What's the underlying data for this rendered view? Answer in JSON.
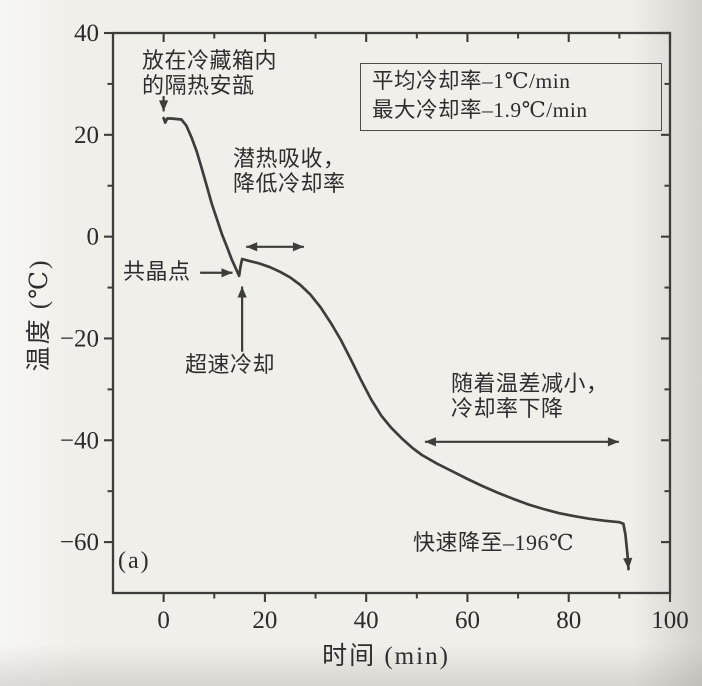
{
  "figure": {
    "panel_label": "(a)",
    "line_color": "#3d3d3c",
    "text_color": "#2e2e2e"
  },
  "axes": {
    "x_label": "时间 (min)",
    "y_label": "温度 (℃)"
  },
  "annotations": {
    "ampoule": {
      "line1": "放在冷藏箱内",
      "line2": "的隔热安瓿"
    },
    "rate_box": {
      "line1": "平均冷却率–1℃/min",
      "line2": "最大冷却率–1.9℃/min"
    },
    "latent_heat": {
      "line1": "潜热吸收，",
      "line2": "降低冷却率"
    },
    "eutectic_point": {
      "text": "共晶点"
    },
    "supercooling": {
      "text": "超速冷却"
    },
    "temp_difference": {
      "line1": "随着温差减小，",
      "line2": "冷却率下降"
    },
    "rapid_drop": {
      "text": "快速降至–196℃"
    }
  },
  "chart_data": {
    "type": "line",
    "title": "",
    "xlabel": "时间 (min)",
    "ylabel": "温度 (℃)",
    "xlim": [
      -10,
      100
    ],
    "ylim": [
      -70,
      40
    ],
    "grid": false,
    "frame": true,
    "x_ticks": {
      "major": [
        0,
        20,
        40,
        60,
        80,
        100
      ],
      "labels": [
        "0",
        "20",
        "40",
        "60",
        "80",
        "100"
      ],
      "minor": [
        10,
        30,
        50,
        70,
        90
      ]
    },
    "y_ticks": {
      "major": [
        40,
        20,
        0,
        -20,
        -40,
        -60
      ],
      "labels": [
        "40",
        "20",
        "0",
        "−20",
        "−40",
        "−60"
      ],
      "minor": [
        30,
        10,
        -10,
        -30,
        -50
      ]
    },
    "series": [
      {
        "name": "cooling-curve",
        "end_arrow": true,
        "points": [
          [
            0,
            23.3
          ],
          [
            0.3,
            22.4
          ],
          [
            0.7,
            23.2
          ],
          [
            1.5,
            23.2
          ],
          [
            3.5,
            23.0
          ],
          [
            4.5,
            21.8
          ],
          [
            5.5,
            19.5
          ],
          [
            6.5,
            16.8
          ],
          [
            7.5,
            13.5
          ],
          [
            8.5,
            10.0
          ],
          [
            9.5,
            6.5
          ],
          [
            10.5,
            3.5
          ],
          [
            11.5,
            0.5
          ],
          [
            12.5,
            -2.0
          ],
          [
            13.5,
            -4.6
          ],
          [
            14.4,
            -6.6
          ],
          [
            14.9,
            -7.7
          ],
          [
            15.2,
            -5.8
          ],
          [
            15.5,
            -4.4
          ],
          [
            17,
            -4.8
          ],
          [
            19,
            -5.3
          ],
          [
            21,
            -6.0
          ],
          [
            23,
            -6.9
          ],
          [
            25,
            -8.0
          ],
          [
            27,
            -9.5
          ],
          [
            29,
            -11.4
          ],
          [
            31,
            -13.9
          ],
          [
            33,
            -16.9
          ],
          [
            35,
            -20.3
          ],
          [
            37,
            -24.2
          ],
          [
            39,
            -28.2
          ],
          [
            41,
            -32.0
          ],
          [
            43,
            -35.2
          ],
          [
            45,
            -37.6
          ],
          [
            47,
            -39.6
          ],
          [
            49,
            -41.4
          ],
          [
            51,
            -42.9
          ],
          [
            54,
            -44.6
          ],
          [
            57,
            -46.1
          ],
          [
            60,
            -47.6
          ],
          [
            63,
            -49.0
          ],
          [
            66,
            -50.3
          ],
          [
            69,
            -51.5
          ],
          [
            72,
            -52.6
          ],
          [
            75,
            -53.5
          ],
          [
            78,
            -54.3
          ],
          [
            81,
            -54.9
          ],
          [
            84,
            -55.4
          ],
          [
            87,
            -55.8
          ],
          [
            90,
            -56.1
          ],
          [
            90.8,
            -56.4
          ],
          [
            91.2,
            -58.5
          ],
          [
            91.6,
            -62.5
          ],
          [
            91.8,
            -65.3
          ]
        ]
      }
    ],
    "arrows": [
      {
        "name": "ampoule-pointer",
        "from": [
          0,
          27.6
        ],
        "to": [
          0,
          24.6
        ],
        "heads": "end"
      },
      {
        "name": "eutectic-pointer",
        "from": [
          7.2,
          -7.1
        ],
        "to": [
          13.6,
          -7.1
        ],
        "heads": "end"
      },
      {
        "name": "supercooling-pointer",
        "from": [
          15.5,
          -22.6
        ],
        "to": [
          15.5,
          -9.8
        ],
        "heads": "end"
      },
      {
        "name": "latent-heat-span",
        "from": [
          16.3,
          -2.0
        ],
        "to": [
          27.7,
          -2.0
        ],
        "heads": "both"
      },
      {
        "name": "temp-diff-span",
        "from": [
          51.6,
          -40.3
        ],
        "to": [
          89.9,
          -40.3
        ],
        "heads": "both"
      }
    ]
  }
}
